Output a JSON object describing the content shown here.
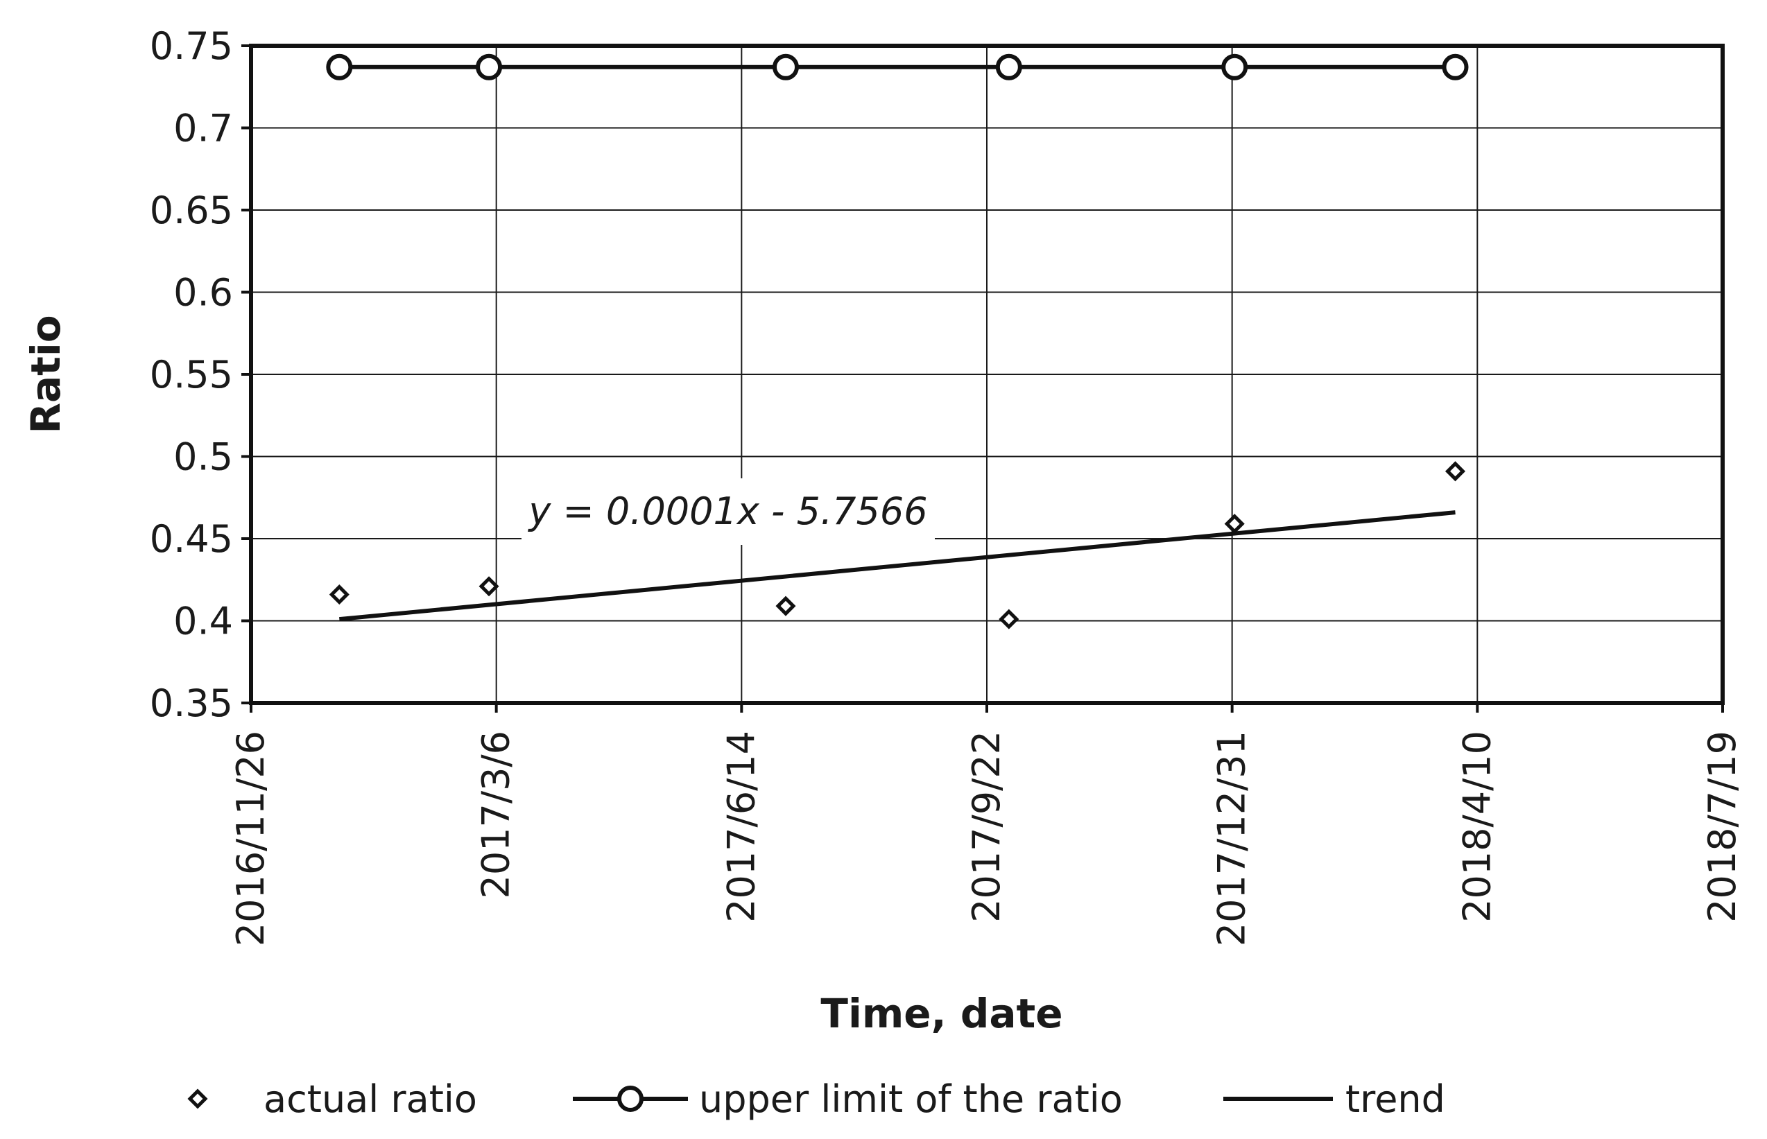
{
  "chart_data": {
    "type": "line",
    "xlabel": "Time, date",
    "ylabel": "Ratio",
    "ylim": [
      0.35,
      0.75
    ],
    "xlim": [
      "2016-11-26",
      "2018-07-19"
    ],
    "x_ticks": [
      "2016/11/26",
      "2017/3/6",
      "2017/6/14",
      "2017/9/22",
      "2017/12/31",
      "2018/4/10",
      "2018/7/19"
    ],
    "y_ticks": [
      "0.35",
      "0.4",
      "0.45",
      "0.5",
      "0.55",
      "0.6",
      "0.65",
      "0.7",
      "0.75"
    ],
    "grid": true,
    "legend_position": "bottom",
    "annotation": "y = 0.0001x - 5.7566",
    "series": [
      {
        "name": "actual ratio",
        "style": "markers",
        "marker": "diamond",
        "x": [
          "2017-01-01",
          "2017-03-03",
          "2017-07-02",
          "2017-10-01",
          "2018-01-01",
          "2018-04-01"
        ],
        "y": [
          0.416,
          0.421,
          0.409,
          0.401,
          0.459,
          0.491
        ]
      },
      {
        "name": "upper limit of the ratio",
        "style": "line-markers",
        "marker": "circle",
        "x": [
          "2017-01-01",
          "2017-03-03",
          "2017-07-02",
          "2017-10-01",
          "2018-01-01",
          "2018-04-01"
        ],
        "y": [
          0.737,
          0.737,
          0.737,
          0.737,
          0.737,
          0.737
        ]
      },
      {
        "name": "trend",
        "style": "line",
        "x": [
          "2017-01-01",
          "2018-04-01"
        ],
        "y": [
          0.401,
          0.466
        ]
      }
    ]
  },
  "legend": {
    "items": [
      "actual ratio",
      "upper limit of the ratio",
      "trend"
    ]
  },
  "colors": {
    "ink": "#111111"
  }
}
